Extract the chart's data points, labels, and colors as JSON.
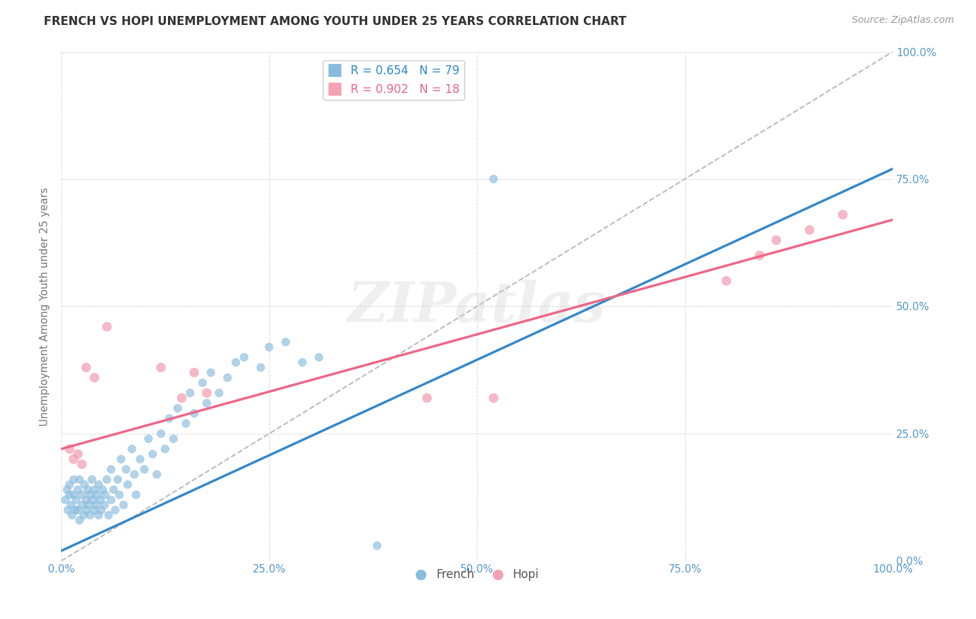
{
  "title": "FRENCH VS HOPI UNEMPLOYMENT AMONG YOUTH UNDER 25 YEARS CORRELATION CHART",
  "source": "Source: ZipAtlas.com",
  "ylabel": "Unemployment Among Youth under 25 years",
  "watermark": "ZIPatlas",
  "french_R": 0.654,
  "french_N": 79,
  "hopi_R": 0.902,
  "hopi_N": 18,
  "french_color": "#88bbdd",
  "hopi_color": "#f4a0b5",
  "french_line_color": "#3388cc",
  "hopi_line_color": "#ee6688",
  "french_scatter": [
    [
      0.005,
      0.12
    ],
    [
      0.007,
      0.14
    ],
    [
      0.008,
      0.1
    ],
    [
      0.01,
      0.13
    ],
    [
      0.01,
      0.15
    ],
    [
      0.012,
      0.11
    ],
    [
      0.013,
      0.09
    ],
    [
      0.015,
      0.13
    ],
    [
      0.015,
      0.16
    ],
    [
      0.017,
      0.1
    ],
    [
      0.018,
      0.12
    ],
    [
      0.02,
      0.14
    ],
    [
      0.02,
      0.1
    ],
    [
      0.022,
      0.08
    ],
    [
      0.022,
      0.16
    ],
    [
      0.025,
      0.11
    ],
    [
      0.025,
      0.13
    ],
    [
      0.027,
      0.09
    ],
    [
      0.028,
      0.15
    ],
    [
      0.03,
      0.1
    ],
    [
      0.03,
      0.12
    ],
    [
      0.032,
      0.14
    ],
    [
      0.033,
      0.11
    ],
    [
      0.035,
      0.13
    ],
    [
      0.035,
      0.09
    ],
    [
      0.037,
      0.16
    ],
    [
      0.038,
      0.12
    ],
    [
      0.04,
      0.1
    ],
    [
      0.04,
      0.14
    ],
    [
      0.042,
      0.11
    ],
    [
      0.043,
      0.13
    ],
    [
      0.045,
      0.09
    ],
    [
      0.045,
      0.15
    ],
    [
      0.047,
      0.12
    ],
    [
      0.048,
      0.1
    ],
    [
      0.05,
      0.14
    ],
    [
      0.052,
      0.11
    ],
    [
      0.053,
      0.13
    ],
    [
      0.055,
      0.16
    ],
    [
      0.057,
      0.09
    ],
    [
      0.06,
      0.12
    ],
    [
      0.06,
      0.18
    ],
    [
      0.063,
      0.14
    ],
    [
      0.065,
      0.1
    ],
    [
      0.068,
      0.16
    ],
    [
      0.07,
      0.13
    ],
    [
      0.072,
      0.2
    ],
    [
      0.075,
      0.11
    ],
    [
      0.078,
      0.18
    ],
    [
      0.08,
      0.15
    ],
    [
      0.085,
      0.22
    ],
    [
      0.088,
      0.17
    ],
    [
      0.09,
      0.13
    ],
    [
      0.095,
      0.2
    ],
    [
      0.1,
      0.18
    ],
    [
      0.105,
      0.24
    ],
    [
      0.11,
      0.21
    ],
    [
      0.115,
      0.17
    ],
    [
      0.12,
      0.25
    ],
    [
      0.125,
      0.22
    ],
    [
      0.13,
      0.28
    ],
    [
      0.135,
      0.24
    ],
    [
      0.14,
      0.3
    ],
    [
      0.15,
      0.27
    ],
    [
      0.155,
      0.33
    ],
    [
      0.16,
      0.29
    ],
    [
      0.17,
      0.35
    ],
    [
      0.175,
      0.31
    ],
    [
      0.18,
      0.37
    ],
    [
      0.19,
      0.33
    ],
    [
      0.2,
      0.36
    ],
    [
      0.21,
      0.39
    ],
    [
      0.22,
      0.4
    ],
    [
      0.24,
      0.38
    ],
    [
      0.25,
      0.42
    ],
    [
      0.27,
      0.43
    ],
    [
      0.29,
      0.39
    ],
    [
      0.31,
      0.4
    ],
    [
      0.38,
      0.03
    ],
    [
      0.52,
      0.75
    ]
  ],
  "hopi_scatter": [
    [
      0.01,
      0.22
    ],
    [
      0.015,
      0.2
    ],
    [
      0.02,
      0.21
    ],
    [
      0.025,
      0.19
    ],
    [
      0.03,
      0.38
    ],
    [
      0.04,
      0.36
    ],
    [
      0.055,
      0.46
    ],
    [
      0.12,
      0.38
    ],
    [
      0.145,
      0.32
    ],
    [
      0.16,
      0.37
    ],
    [
      0.175,
      0.33
    ],
    [
      0.44,
      0.32
    ],
    [
      0.52,
      0.32
    ],
    [
      0.8,
      0.55
    ],
    [
      0.84,
      0.6
    ],
    [
      0.86,
      0.63
    ],
    [
      0.9,
      0.65
    ],
    [
      0.94,
      0.68
    ]
  ],
  "french_trendline_x": [
    0.0,
    1.0
  ],
  "french_trendline_y": [
    0.02,
    0.77
  ],
  "hopi_trendline_x": [
    0.0,
    1.0
  ],
  "hopi_trendline_y": [
    0.22,
    0.67
  ],
  "diagonal_line": [
    [
      0.0,
      0.0
    ],
    [
      1.0,
      1.0
    ]
  ],
  "xlim": [
    0.0,
    1.0
  ],
  "ylim": [
    0.0,
    1.0
  ],
  "xticks": [
    0.0,
    0.25,
    0.5,
    0.75,
    1.0
  ],
  "yticks": [
    0.0,
    0.25,
    0.5,
    0.75,
    1.0
  ],
  "xtick_labels": [
    "0.0%",
    "25.0%",
    "50.0%",
    "75.0%",
    "100.0%"
  ],
  "ytick_labels_right": [
    "0.0%",
    "25.0%",
    "50.0%",
    "75.0%",
    "100.0%"
  ],
  "tick_color": "#5599cc",
  "background_color": "#ffffff",
  "grid_color": "#dddddd"
}
